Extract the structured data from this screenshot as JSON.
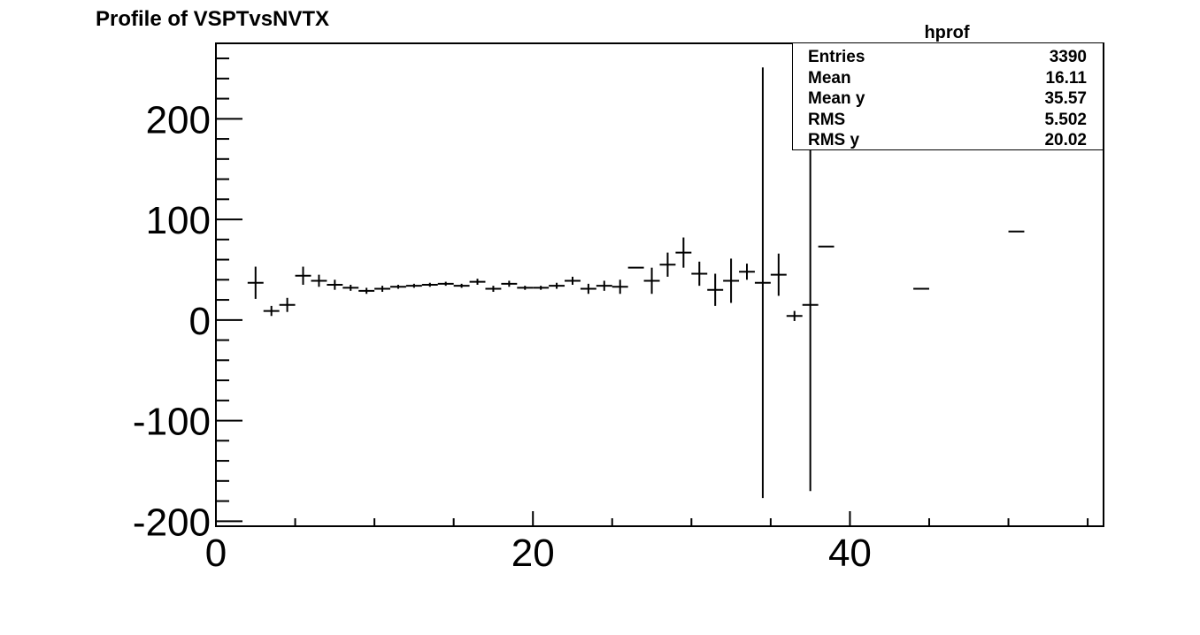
{
  "chart_data": {
    "type": "scatter",
    "title": "Profile of VSPTvsNVTX",
    "xlabel": "",
    "ylabel": "",
    "xlim": [
      0,
      56
    ],
    "ylim": [
      -205,
      275
    ],
    "xticks": [
      "0",
      "20",
      "40"
    ],
    "yticks": [
      "-200",
      "-100",
      "0",
      "100",
      "200"
    ],
    "grid": false,
    "series": [
      {
        "x": [
          2.5,
          3.5,
          4.5,
          5.5,
          6.5,
          7.5,
          8.5,
          9.5,
          10.5,
          11.5,
          12.5,
          13.5,
          14.5,
          15.5,
          16.5,
          17.5,
          18.5,
          19.5,
          20.5,
          21.5,
          22.5,
          23.5,
          24.5,
          25.5,
          26.5,
          27.5,
          28.5,
          29.5,
          30.5,
          31.5,
          32.5,
          33.5,
          34.5,
          35.5,
          36.5,
          37.5,
          38.5,
          44.5,
          50.5
        ],
        "y": [
          37,
          9,
          15,
          44,
          39,
          35,
          32,
          29,
          31,
          33,
          34,
          35,
          36,
          34,
          38,
          31,
          36,
          32,
          32,
          34,
          39,
          31,
          34,
          33,
          52,
          39,
          55,
          67,
          46,
          30,
          39,
          48,
          37,
          45,
          4,
          15,
          73,
          31,
          88
        ],
        "yerr": [
          16,
          5,
          7,
          9,
          6,
          5,
          3,
          3,
          3,
          2,
          2,
          2,
          2,
          2,
          3,
          3,
          3,
          2,
          2,
          3,
          4,
          5,
          5,
          7,
          0,
          13,
          12,
          15,
          12,
          16,
          22,
          8,
          214,
          21,
          5,
          185,
          0,
          0,
          0
        ]
      }
    ]
  },
  "stats": {
    "title": "hprof",
    "rows": [
      {
        "label": "Entries",
        "value": "3390"
      },
      {
        "label": "Mean",
        "value": "16.11"
      },
      {
        "label": "Mean y",
        "value": "35.57"
      },
      {
        "label": "RMS",
        "value": "5.502"
      },
      {
        "label": "RMS y",
        "value": "20.02"
      }
    ]
  }
}
